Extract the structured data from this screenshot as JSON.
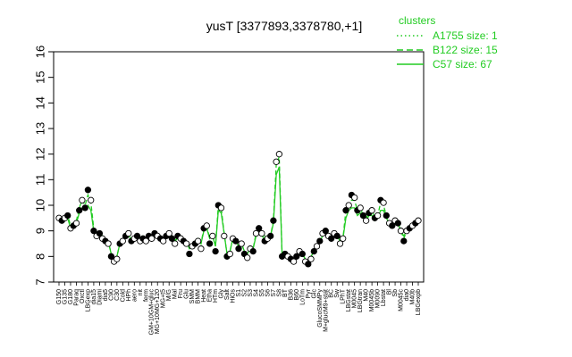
{
  "chart_data": {
    "type": "line",
    "title": "yusT [3377893,3378780,+1]",
    "ylim": [
      7,
      16
    ],
    "yticks": [
      "7",
      "8",
      "9",
      "10",
      "11",
      "12",
      "13",
      "14",
      "15",
      "16"
    ],
    "xlabels": [
      "G150",
      "G135",
      "G180",
      "Paraq",
      "Oxctl",
      "LBGexp",
      "dia15",
      "Diami",
      "dia5",
      "C90",
      "C30",
      "Cold",
      "HPh",
      "aero",
      "nit",
      "ferm",
      "GM+10GM+gluc",
      "MG+10MG+120",
      "MG+t5",
      "M/G",
      "Mal",
      "Fru",
      "Glu",
      "SMM",
      "BMM",
      "Heat",
      "Etha",
      "HTm",
      "Gly",
      "Salt",
      "HiOs",
      "S1",
      "S2",
      "S3",
      "S4",
      "S5",
      "S6",
      "S7",
      "S8",
      "BT",
      "B36",
      "B60",
      "LoTm",
      "Pyr",
      "Glc",
      "GlucoSMMPy",
      "M+glucM9+stat",
      "BC",
      "Sw",
      "LPhT",
      "LBGstat",
      "M0045",
      "LBGtran",
      "M40",
      "M0045b",
      "M0090",
      "Lbstat",
      "Bl",
      "Sb",
      "M0045c",
      "dia0",
      "M40b",
      "LBGexpb"
    ],
    "xlabels_visible": [
      "G150",
      "G135",
      "G180",
      "Paraq",
      "Oxctl",
      "LBGexp",
      "dia15",
      "Diami",
      "dia5",
      "C90",
      "C30",
      "Cold",
      "HPh",
      "aero",
      "nit",
      "ferm",
      "M/G",
      "Mal",
      "Fru",
      "Glu",
      "SMM",
      "BMM",
      "Heat",
      "Etha",
      "HTm",
      "Gly",
      "Salt",
      "HiOs",
      "S1",
      "S2",
      "S3",
      "S4",
      "S5",
      "S6",
      "S7",
      "S8",
      "BT",
      "B36",
      "B60",
      "LoTm",
      "Pyr",
      "Glc",
      "BC",
      "Sw",
      "LPhT",
      "LBGstat",
      "M0045",
      "M40",
      "M0090",
      "Lbstat",
      "Bl",
      "Sb",
      "dia0"
    ],
    "legend": {
      "title": "clusters",
      "position": "top-right",
      "entries": [
        {
          "name": "A1755 size: 1",
          "style": "dotted"
        },
        {
          "name": "B122 size: 15",
          "style": "dashed"
        },
        {
          "name": "C57 size: 67",
          "style": "solid"
        }
      ]
    },
    "line_color": "#22cc22",
    "points": [
      {
        "x": 1,
        "y": 9.5,
        "f": false
      },
      {
        "x": 2,
        "y": 9.4,
        "f": true
      },
      {
        "x": 3,
        "y": 9.5,
        "f": false
      },
      {
        "x": 4,
        "y": 9.6,
        "f": true
      },
      {
        "x": 5,
        "y": 9.1,
        "f": false
      },
      {
        "x": 6,
        "y": 9.2,
        "f": true
      },
      {
        "x": 7,
        "y": 9.3,
        "f": false
      },
      {
        "x": 8,
        "y": 9.8,
        "f": true
      },
      {
        "x": 9,
        "y": 10.2,
        "f": false
      },
      {
        "x": 10,
        "y": 9.9,
        "f": true
      },
      {
        "x": 11,
        "y": 10.6,
        "f": true
      },
      {
        "x": 12,
        "y": 10.2,
        "f": false
      },
      {
        "x": 13,
        "y": 9.0,
        "f": true
      },
      {
        "x": 14,
        "y": 8.8,
        "f": false
      },
      {
        "x": 15,
        "y": 8.9,
        "f": true
      },
      {
        "x": 16,
        "y": 8.7,
        "f": false
      },
      {
        "x": 17,
        "y": 8.6,
        "f": true
      },
      {
        "x": 18,
        "y": 8.5,
        "f": false
      },
      {
        "x": 19,
        "y": 8.0,
        "f": true
      },
      {
        "x": 20,
        "y": 7.8,
        "f": false
      },
      {
        "x": 21,
        "y": 7.9,
        "f": false
      },
      {
        "x": 22,
        "y": 8.5,
        "f": true
      },
      {
        "x": 23,
        "y": 8.6,
        "f": false
      },
      {
        "x": 24,
        "y": 8.8,
        "f": true
      },
      {
        "x": 25,
        "y": 8.9,
        "f": false
      },
      {
        "x": 26,
        "y": 8.6,
        "f": true
      },
      {
        "x": 27,
        "y": 8.7,
        "f": false
      },
      {
        "x": 28,
        "y": 8.8,
        "f": true
      },
      {
        "x": 29,
        "y": 8.6,
        "f": false
      },
      {
        "x": 30,
        "y": 8.7,
        "f": true
      },
      {
        "x": 31,
        "y": 8.6,
        "f": false
      },
      {
        "x": 32,
        "y": 8.8,
        "f": true
      },
      {
        "x": 33,
        "y": 8.7,
        "f": false
      },
      {
        "x": 34,
        "y": 8.9,
        "f": true
      },
      {
        "x": 35,
        "y": 8.8,
        "f": false
      },
      {
        "x": 36,
        "y": 8.7,
        "f": true
      },
      {
        "x": 37,
        "y": 8.6,
        "f": false
      },
      {
        "x": 38,
        "y": 8.8,
        "f": true
      },
      {
        "x": 39,
        "y": 8.9,
        "f": false
      },
      {
        "x": 40,
        "y": 8.7,
        "f": true
      },
      {
        "x": 41,
        "y": 8.5,
        "f": false
      },
      {
        "x": 42,
        "y": 8.8,
        "f": true
      },
      {
        "x": 43,
        "y": 8.7,
        "f": false
      },
      {
        "x": 44,
        "y": 8.6,
        "f": true
      },
      {
        "x": 45,
        "y": 8.5,
        "f": false
      },
      {
        "x": 46,
        "y": 8.1,
        "f": true
      },
      {
        "x": 47,
        "y": 8.4,
        "f": false
      },
      {
        "x": 48,
        "y": 8.5,
        "f": true
      },
      {
        "x": 49,
        "y": 8.6,
        "f": false
      },
      {
        "x": 50,
        "y": 8.3,
        "f": false
      },
      {
        "x": 51,
        "y": 9.1,
        "f": true
      },
      {
        "x": 52,
        "y": 9.2,
        "f": false
      },
      {
        "x": 53,
        "y": 8.5,
        "f": true
      },
      {
        "x": 54,
        "y": 8.8,
        "f": false
      },
      {
        "x": 55,
        "y": 8.2,
        "f": true
      },
      {
        "x": 56,
        "y": 10.0,
        "f": true
      },
      {
        "x": 57,
        "y": 9.9,
        "f": false
      },
      {
        "x": 58,
        "y": 8.8,
        "f": false
      },
      {
        "x": 59,
        "y": 8.0,
        "f": true
      },
      {
        "x": 60,
        "y": 8.1,
        "f": false
      },
      {
        "x": 61,
        "y": 8.7,
        "f": false
      },
      {
        "x": 62,
        "y": 8.6,
        "f": true
      },
      {
        "x": 63,
        "y": 8.3,
        "f": true
      },
      {
        "x": 64,
        "y": 8.5,
        "f": false
      },
      {
        "x": 65,
        "y": 8.1,
        "f": true
      },
      {
        "x": 66,
        "y": 7.95,
        "f": false
      },
      {
        "x": 67,
        "y": 8.3,
        "f": false
      },
      {
        "x": 68,
        "y": 8.2,
        "f": true
      },
      {
        "x": 69,
        "y": 8.9,
        "f": false
      },
      {
        "x": 70,
        "y": 9.1,
        "f": true
      },
      {
        "x": 71,
        "y": 8.9,
        "f": false
      },
      {
        "x": 72,
        "y": 8.6,
        "f": true
      },
      {
        "x": 73,
        "y": 8.7,
        "f": false
      },
      {
        "x": 74,
        "y": 8.8,
        "f": true
      },
      {
        "x": 75,
        "y": 9.4,
        "f": true
      },
      {
        "x": 76,
        "y": 11.7,
        "f": false
      },
      {
        "x": 77,
        "y": 12.0,
        "f": false
      },
      {
        "x": 78,
        "y": 8.0,
        "f": true
      },
      {
        "x": 79,
        "y": 8.1,
        "f": true
      },
      {
        "x": 80,
        "y": 8.0,
        "f": false
      },
      {
        "x": 81,
        "y": 7.9,
        "f": true
      },
      {
        "x": 82,
        "y": 7.8,
        "f": false
      },
      {
        "x": 83,
        "y": 8.0,
        "f": true
      },
      {
        "x": 84,
        "y": 8.2,
        "f": false
      },
      {
        "x": 85,
        "y": 8.1,
        "f": true
      },
      {
        "x": 86,
        "y": 7.8,
        "f": false
      },
      {
        "x": 87,
        "y": 7.7,
        "f": true
      },
      {
        "x": 88,
        "y": 7.9,
        "f": false
      },
      {
        "x": 89,
        "y": 8.2,
        "f": true
      },
      {
        "x": 90,
        "y": 8.4,
        "f": false
      },
      {
        "x": 91,
        "y": 8.6,
        "f": true
      },
      {
        "x": 92,
        "y": 8.9,
        "f": false
      },
      {
        "x": 93,
        "y": 9.0,
        "f": true
      },
      {
        "x": 94,
        "y": 8.8,
        "f": false
      },
      {
        "x": 95,
        "y": 8.7,
        "f": true
      },
      {
        "x": 96,
        "y": 8.9,
        "f": false
      },
      {
        "x": 97,
        "y": 8.8,
        "f": true
      },
      {
        "x": 98,
        "y": 8.5,
        "f": false
      },
      {
        "x": 99,
        "y": 8.7,
        "f": false
      },
      {
        "x": 100,
        "y": 9.8,
        "f": true
      },
      {
        "x": 101,
        "y": 10.0,
        "f": false
      },
      {
        "x": 102,
        "y": 10.4,
        "f": true
      },
      {
        "x": 103,
        "y": 10.3,
        "f": false
      },
      {
        "x": 104,
        "y": 9.8,
        "f": true
      },
      {
        "x": 105,
        "y": 9.9,
        "f": false
      },
      {
        "x": 106,
        "y": 9.6,
        "f": true
      },
      {
        "x": 107,
        "y": 9.4,
        "f": false
      },
      {
        "x": 108,
        "y": 9.7,
        "f": true
      },
      {
        "x": 109,
        "y": 9.8,
        "f": false
      },
      {
        "x": 110,
        "y": 9.5,
        "f": true
      },
      {
        "x": 111,
        "y": 9.6,
        "f": false
      },
      {
        "x": 112,
        "y": 10.2,
        "f": true
      },
      {
        "x": 113,
        "y": 10.1,
        "f": false
      },
      {
        "x": 114,
        "y": 9.6,
        "f": true
      },
      {
        "x": 115,
        "y": 9.3,
        "f": false
      },
      {
        "x": 116,
        "y": 9.2,
        "f": true
      },
      {
        "x": 117,
        "y": 9.4,
        "f": false
      },
      {
        "x": 118,
        "y": 9.3,
        "f": true
      },
      {
        "x": 119,
        "y": 9.0,
        "f": false
      },
      {
        "x": 120,
        "y": 8.6,
        "f": true
      },
      {
        "x": 121,
        "y": 9.0,
        "f": false
      },
      {
        "x": 122,
        "y": 9.1,
        "f": true
      },
      {
        "x": 123,
        "y": 9.2,
        "f": false
      },
      {
        "x": 124,
        "y": 9.3,
        "f": true
      },
      {
        "x": 125,
        "y": 9.4,
        "f": false
      }
    ],
    "line_solid": [
      9.4,
      9.4,
      9.5,
      9.5,
      9.1,
      9.2,
      9.3,
      9.7,
      9.9,
      9.8,
      10.0,
      9.8,
      9.0,
      8.9,
      8.9,
      8.8,
      8.7,
      8.6,
      8.1,
      7.9,
      8.0,
      8.5,
      8.6,
      8.7,
      8.8,
      8.7,
      8.7,
      8.7,
      8.7,
      8.7,
      8.7,
      8.7,
      8.7,
      8.8,
      8.8,
      8.7,
      8.7,
      8.8,
      8.8,
      8.7,
      8.6,
      8.7,
      8.7,
      8.6,
      8.6,
      8.3,
      8.4,
      8.5,
      8.6,
      8.5,
      9.0,
      9.1,
      8.7,
      8.8,
      8.4,
      9.8,
      9.7,
      8.9,
      8.1,
      8.2,
      8.7,
      8.6,
      8.4,
      8.5,
      8.2,
      8.1,
      8.3,
      8.3,
      8.8,
      8.9,
      8.8,
      8.7,
      8.7,
      8.8,
      9.3,
      11.2,
      11.5,
      8.1,
      8.1,
      8.0,
      8.0,
      7.9,
      8.0,
      8.1,
      8.1,
      7.9,
      7.8,
      8.0,
      8.2,
      8.4,
      8.6,
      8.8,
      8.9,
      8.8,
      8.8,
      8.8,
      8.8,
      8.6,
      8.7,
      9.5,
      9.8,
      9.9,
      9.9,
      9.6,
      9.7,
      9.5,
      9.4,
      9.6,
      9.6,
      9.4,
      9.5,
      9.8,
      9.8,
      9.5,
      9.3,
      9.2,
      9.3,
      9.3,
      9.0,
      8.8,
      9.0,
      9.1,
      9.2,
      9.3,
      9.3
    ],
    "line_dashed": [
      9.4,
      9.4,
      9.5,
      9.6,
      9.2,
      9.3,
      9.4,
      9.9,
      10.2,
      10.0,
      10.4,
      10.1,
      9.1,
      8.9,
      9.0,
      8.8,
      8.7,
      8.6,
      8.1,
      7.9,
      8.0,
      8.5,
      8.7,
      8.8,
      8.9,
      8.7,
      8.8,
      8.8,
      8.7,
      8.8,
      8.7,
      8.8,
      8.8,
      8.9,
      8.8,
      8.8,
      8.7,
      8.8,
      8.9,
      8.8,
      8.6,
      8.8,
      8.8,
      8.7,
      8.6,
      8.3,
      8.4,
      8.5,
      8.7,
      8.5,
      9.1,
      9.2,
      8.7,
      8.9,
      8.4,
      10.0,
      9.9,
      8.9,
      8.1,
      8.2,
      8.7,
      8.7,
      8.4,
      8.5,
      8.2,
      8.1,
      8.3,
      8.3,
      8.9,
      9.0,
      8.9,
      8.8,
      8.8,
      8.8,
      9.4,
      11.6,
      11.9,
      8.1,
      8.1,
      8.0,
      8.0,
      7.9,
      8.0,
      8.1,
      8.1,
      7.9,
      7.8,
      8.0,
      8.2,
      8.4,
      8.7,
      8.9,
      9.0,
      8.9,
      8.8,
      8.9,
      8.8,
      8.6,
      8.7,
      9.8,
      10.0,
      10.2,
      10.2,
      9.8,
      9.9,
      9.6,
      9.5,
      9.7,
      9.8,
      9.5,
      9.6,
      10.1,
      10.0,
      9.6,
      9.3,
      9.2,
      9.3,
      9.3,
      9.0,
      8.7,
      9.0,
      9.1,
      9.2,
      9.3,
      9.4
    ]
  }
}
